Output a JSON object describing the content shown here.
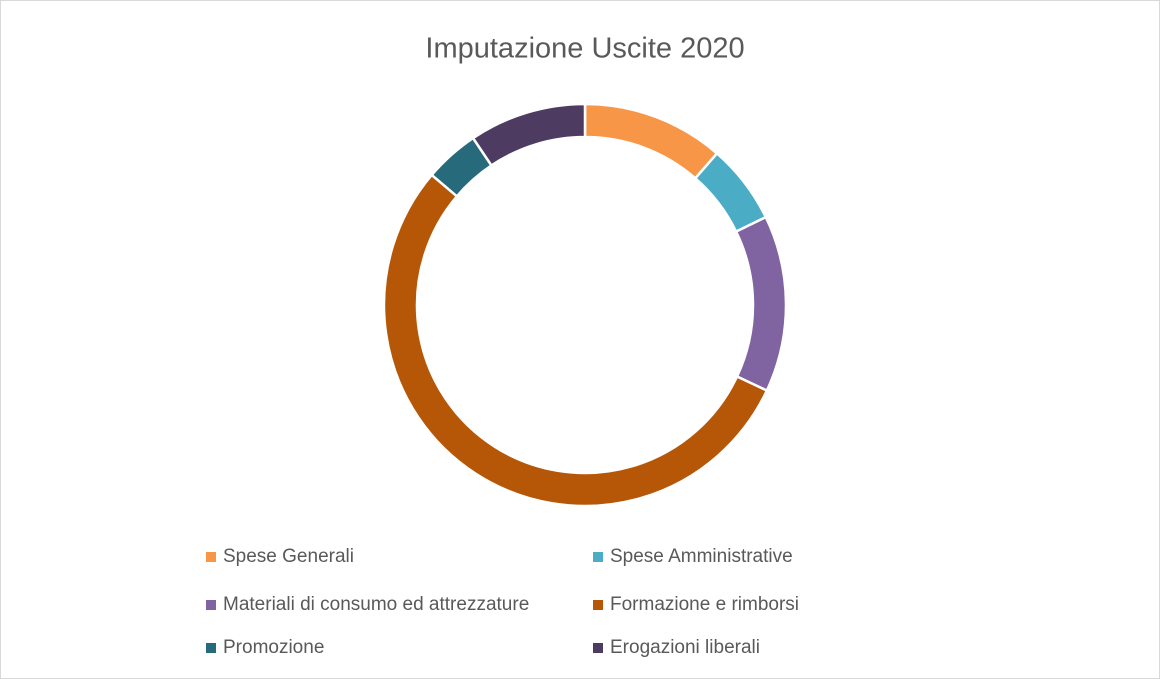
{
  "chart_data": {
    "type": "donut",
    "title": "Imputazione Uscite 2020",
    "categories": [
      "Spese Generali",
      "Spese Amministrative",
      "Materiali di consumo ed attrezzature",
      "Formazione e rimborsi",
      "Promozione",
      "Erogazioni liberali"
    ],
    "values": [
      11.4,
      6.4,
      14.2,
      54.2,
      4.4,
      9.4
    ],
    "colors": [
      "#f79646",
      "#4bacc6",
      "#8064a2",
      "#b65708",
      "#276a7c",
      "#4e3b62"
    ],
    "legend": "bottom"
  }
}
